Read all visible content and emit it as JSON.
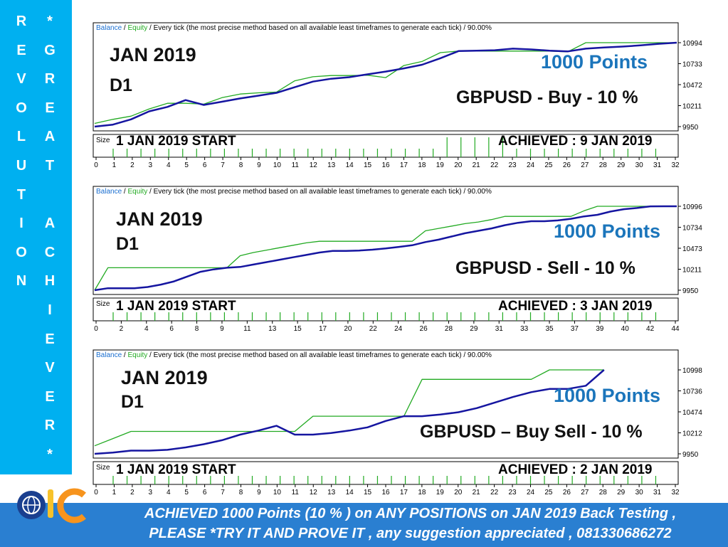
{
  "sidebar": {
    "col1": [
      "R",
      "E",
      "V",
      "O",
      "L",
      "U",
      "T",
      "I",
      "O",
      "N"
    ],
    "col2": [
      "*",
      "G",
      "R",
      "E",
      "A",
      "T",
      "",
      "A",
      "C",
      "H",
      "I",
      "E",
      "V",
      "E",
      "R",
      "*"
    ]
  },
  "colors": {
    "balance": "#1515a0",
    "equity": "#22aa22",
    "grid": "#000000",
    "sidebar": "#00b0f0",
    "banner": "#2a7fd1",
    "points_text": "#1b75bb"
  },
  "charts": [
    {
      "header": {
        "balance": "Balance",
        "equity": "Equity",
        "text": "/ Every tick (the most precise method based on all available least timeframes to generate each tick) / 90.00%"
      },
      "month": "JAN 2019",
      "timeframe": "D1",
      "points": "1000 Points",
      "pair": "GBPUSD - Buy - 10 %",
      "start_label": "1 JAN 2019 START",
      "achieved_label": "ACHIEVED : 9 JAN 2019",
      "size_label": "Size"
    },
    {
      "header": {
        "balance": "Balance",
        "equity": "Equity",
        "text": "/ Every tick (the most precise method based on all available least timeframes to generate each tick) / 90.00%"
      },
      "month": "JAN 2019",
      "timeframe": "D1",
      "points": "1000 Points",
      "pair": "GBPUSD - Sell  - 10 %",
      "start_label": "1 JAN 2019 START",
      "achieved_label": "ACHIEVED : 3 JAN 2019",
      "size_label": "Size"
    },
    {
      "header": {
        "balance": "Balance",
        "equity": "Equity",
        "text": "/ Every tick (the most precise method based on all available least timeframes to generate each tick) / 90.00%"
      },
      "month": "JAN 2019",
      "timeframe": "D1",
      "points": "1000 Points",
      "pair": "GBPUSD – Buy Sell - 10 %",
      "start_label": "1 JAN 2019 START",
      "achieved_label": "ACHIEVED : 2 JAN 2019",
      "size_label": "Size"
    }
  ],
  "chart_data": [
    {
      "type": "line",
      "yticks": [
        "10994",
        "10733",
        "10472",
        "10211",
        "9950"
      ],
      "ylim": [
        9950,
        10994
      ],
      "xticks": [
        "0",
        "1",
        "2",
        "3",
        "4",
        "5",
        "6",
        "7",
        "8",
        "9",
        "10",
        "11",
        "12",
        "13",
        "14",
        "15",
        "16",
        "17",
        "18",
        "19",
        "20",
        "21",
        "22",
        "23",
        "24",
        "25",
        "26",
        "27",
        "28",
        "29",
        "30",
        "31",
        "32"
      ],
      "xlim": [
        0,
        32
      ],
      "series": [
        {
          "name": "Balance",
          "x": [
            0,
            1,
            2,
            3,
            4,
            5,
            6,
            7,
            8,
            9,
            10,
            11,
            12,
            13,
            14,
            15,
            16,
            17,
            18,
            19,
            20,
            21,
            22,
            23,
            24,
            25,
            26,
            27,
            28,
            29,
            30,
            31,
            32
          ],
          "values": [
            9950,
            9975,
            10040,
            10140,
            10195,
            10280,
            10220,
            10260,
            10300,
            10335,
            10370,
            10440,
            10510,
            10545,
            10565,
            10600,
            10635,
            10675,
            10720,
            10800,
            10890,
            10895,
            10900,
            10920,
            10910,
            10895,
            10885,
            10920,
            10935,
            10945,
            10960,
            10980,
            10994
          ]
        },
        {
          "name": "Equity",
          "x": [
            0,
            1,
            2,
            3,
            4,
            5,
            6,
            7,
            8,
            9,
            10,
            11,
            12,
            13,
            14,
            15,
            16,
            17,
            18,
            19,
            20,
            21,
            22,
            23,
            24,
            25,
            26,
            27,
            28,
            29,
            30,
            31,
            32
          ],
          "values": [
            9990,
            10040,
            10080,
            10170,
            10240,
            10240,
            10230,
            10310,
            10355,
            10370,
            10380,
            10520,
            10570,
            10585,
            10585,
            10590,
            10560,
            10710,
            10760,
            10870,
            10890,
            10890,
            10890,
            10890,
            10890,
            10890,
            10880,
            10994,
            10994,
            10994,
            10994,
            10994,
            10994
          ]
        }
      ],
      "volume": [
        0,
        0,
        0,
        0,
        0,
        0,
        0,
        0,
        0,
        0,
        0,
        0,
        0,
        0,
        0,
        0,
        0,
        0,
        0,
        1,
        0,
        1,
        1,
        0,
        0,
        0,
        0,
        0,
        0,
        0,
        0,
        0,
        0
      ]
    },
    {
      "type": "line",
      "yticks": [
        "10996",
        "10734",
        "10473",
        "10211",
        "9950"
      ],
      "ylim": [
        9950,
        10996
      ],
      "xticks": [
        "0",
        "2",
        "4",
        "6",
        "8",
        "9",
        "11",
        "13",
        "15",
        "17",
        "20",
        "22",
        "24",
        "26",
        "28",
        "29",
        "31",
        "33",
        "35",
        "37",
        "39",
        "40",
        "42",
        "44"
      ],
      "xlim": [
        0,
        44
      ],
      "series": [
        {
          "name": "Balance",
          "x": [
            0,
            1,
            2,
            3,
            4,
            5,
            6,
            7,
            8,
            9,
            10,
            11,
            12,
            13,
            14,
            15,
            16,
            17,
            18,
            19,
            20,
            21,
            22,
            23,
            24,
            25,
            26,
            27,
            28,
            29,
            30,
            31,
            32,
            33,
            34,
            35,
            36,
            37,
            38,
            39,
            40,
            41,
            42,
            43,
            44
          ],
          "values": [
            9950,
            9975,
            9975,
            9975,
            9990,
            10020,
            10060,
            10120,
            10180,
            10210,
            10230,
            10240,
            10270,
            10300,
            10330,
            10360,
            10390,
            10420,
            10440,
            10440,
            10445,
            10455,
            10470,
            10490,
            10510,
            10550,
            10580,
            10620,
            10660,
            10690,
            10720,
            10760,
            10790,
            10810,
            10810,
            10820,
            10840,
            10870,
            10890,
            10930,
            10960,
            10975,
            10995,
            10996,
            10996
          ]
        },
        {
          "name": "Equity",
          "x": [
            0,
            1,
            2,
            3,
            4,
            5,
            6,
            7,
            8,
            9,
            10,
            11,
            12,
            13,
            14,
            15,
            16,
            17,
            18,
            19,
            20,
            21,
            22,
            23,
            24,
            25,
            26,
            27,
            28,
            29,
            30,
            31,
            32,
            33,
            34,
            35,
            36,
            37,
            38,
            39,
            40,
            41,
            42,
            43,
            44
          ],
          "values": [
            9950,
            10230,
            10230,
            10230,
            10230,
            10230,
            10230,
            10230,
            10230,
            10230,
            10230,
            10380,
            10420,
            10450,
            10480,
            10510,
            10540,
            10560,
            10560,
            10560,
            10560,
            10560,
            10560,
            10560,
            10560,
            10690,
            10720,
            10750,
            10780,
            10800,
            10830,
            10870,
            10870,
            10870,
            10870,
            10870,
            10870,
            10940,
            10996,
            10996,
            10996,
            10996,
            10996,
            10996,
            10996
          ]
        }
      ],
      "volume": []
    },
    {
      "type": "line",
      "yticks": [
        "10998",
        "10736",
        "10474",
        "10212",
        "9950"
      ],
      "ylim": [
        9950,
        10998
      ],
      "xticks": [
        "0",
        "1",
        "2",
        "3",
        "4",
        "5",
        "6",
        "7",
        "8",
        "9",
        "10",
        "11",
        "12",
        "13",
        "14",
        "15",
        "16",
        "17",
        "18",
        "19",
        "20",
        "21",
        "22",
        "23",
        "24",
        "25",
        "26",
        "27",
        "28",
        "29",
        "30",
        "31",
        "32"
      ],
      "xlim": [
        0,
        32
      ],
      "series": [
        {
          "name": "Balance",
          "x": [
            0,
            1,
            2,
            3,
            4,
            5,
            6,
            7,
            8,
            9,
            10,
            11,
            12,
            13,
            14,
            15,
            16,
            17,
            18,
            19,
            20,
            21,
            22,
            23,
            24,
            25,
            26,
            27,
            28
          ],
          "values": [
            9950,
            9965,
            9990,
            9990,
            10000,
            10030,
            10070,
            10120,
            10190,
            10240,
            10300,
            10190,
            10190,
            10210,
            10240,
            10280,
            10360,
            10420,
            10420,
            10440,
            10470,
            10520,
            10590,
            10660,
            10720,
            10760,
            10760,
            10800,
            10998
          ]
        },
        {
          "name": "Equity",
          "x": [
            0,
            1,
            2,
            3,
            4,
            5,
            6,
            7,
            8,
            9,
            10,
            11,
            12,
            13,
            14,
            15,
            16,
            17,
            18,
            19,
            20,
            21,
            22,
            23,
            24,
            25,
            26,
            27,
            28
          ],
          "values": [
            10050,
            10140,
            10230,
            10230,
            10230,
            10230,
            10230,
            10230,
            10230,
            10230,
            10230,
            10230,
            10420,
            10420,
            10420,
            10420,
            10420,
            10420,
            10880,
            10880,
            10880,
            10880,
            10880,
            10880,
            10880,
            10998,
            10998,
            10998,
            10998
          ]
        }
      ],
      "volume": []
    }
  ],
  "banner": {
    "line1": "ACHIEVED 1000 Points (10 % ) on  ANY  POSITIONS on  JAN 2019 Back    Testing ,",
    "line2": "PLEASE *TRY IT  AND PROVE IT  , any suggestion appreciated , 081330686272"
  }
}
